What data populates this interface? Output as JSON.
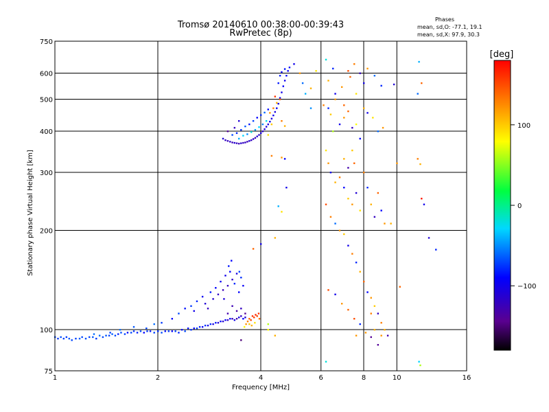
{
  "chart_data": {
    "type": "scatter",
    "title": "Tromsø 20140610 00:38:00-00:39:43",
    "subtitle": "RwPretec (8p)",
    "xlabel": "Frequency [MHz]",
    "ylabel": "Stationary phase Virtual Height [km]",
    "x_scale": "log",
    "y_scale": "log",
    "xlim": [
      1,
      16
    ],
    "ylim": [
      75,
      750
    ],
    "x_ticks": [
      1,
      2,
      4,
      6,
      8,
      10,
      16
    ],
    "y_ticks": [
      75,
      100,
      200,
      300,
      400,
      500,
      600,
      750
    ],
    "x_grid": [
      2,
      4,
      6,
      8,
      10
    ],
    "y_grid": [
      100,
      200,
      300,
      400,
      500,
      600
    ],
    "phase_box": {
      "heading": "Phases",
      "line1": "mean, sd,O: -77.1, 19.1",
      "line2": "mean, sd,X:  97.9, 30.3"
    },
    "colorbar": {
      "label": "[deg]",
      "range": [
        -180,
        180
      ],
      "ticks": [
        {
          "value": 100,
          "label": "100"
        },
        {
          "value": 0,
          "label": "0"
        },
        {
          "value": -100,
          "label": "−100"
        }
      ]
    },
    "points": [
      [
        1.0,
        95,
        -70
      ],
      [
        1.02,
        94,
        -75
      ],
      [
        1.04,
        95,
        -68
      ],
      [
        1.06,
        94,
        -72
      ],
      [
        1.08,
        95,
        -74
      ],
      [
        1.1,
        94,
        -66
      ],
      [
        1.12,
        93,
        -70
      ],
      [
        1.15,
        94,
        -72
      ],
      [
        1.18,
        94,
        -64
      ],
      [
        1.2,
        95,
        -70
      ],
      [
        1.23,
        94,
        -68
      ],
      [
        1.26,
        95,
        -72
      ],
      [
        1.29,
        95,
        -66
      ],
      [
        1.32,
        94,
        -74
      ],
      [
        1.35,
        96,
        -60
      ],
      [
        1.38,
        95,
        -70
      ],
      [
        1.41,
        96,
        -66
      ],
      [
        1.44,
        96,
        -72
      ],
      [
        1.47,
        97,
        -64
      ],
      [
        1.5,
        96,
        -70
      ],
      [
        1.53,
        97,
        -80
      ],
      [
        1.56,
        98,
        -68
      ],
      [
        1.6,
        97,
        -72
      ],
      [
        1.63,
        98,
        -88
      ],
      [
        1.67,
        98,
        -70
      ],
      [
        1.7,
        99,
        -76
      ],
      [
        1.74,
        98,
        -82
      ],
      [
        1.78,
        99,
        -70
      ],
      [
        1.82,
        98,
        -90
      ],
      [
        1.86,
        99,
        -74
      ],
      [
        1.9,
        99,
        -84
      ],
      [
        1.95,
        98,
        -72
      ],
      [
        2.0,
        99,
        -78
      ],
      [
        2.05,
        98,
        -70
      ],
      [
        2.1,
        99,
        -86
      ],
      [
        2.15,
        99,
        -74
      ],
      [
        2.2,
        99,
        -92
      ],
      [
        2.25,
        99,
        -72
      ],
      [
        2.3,
        98,
        -80
      ],
      [
        2.35,
        100,
        -88
      ],
      [
        2.4,
        99,
        -70
      ],
      [
        2.45,
        101,
        -84
      ],
      [
        2.5,
        100,
        -76
      ],
      [
        2.55,
        101,
        -90
      ],
      [
        2.6,
        101,
        -72
      ],
      [
        2.65,
        102,
        -82
      ],
      [
        2.7,
        102,
        -94
      ],
      [
        2.75,
        103,
        -76
      ],
      [
        2.8,
        103,
        -100
      ],
      [
        2.85,
        104,
        -80
      ],
      [
        2.9,
        104,
        -104
      ],
      [
        2.95,
        105,
        -84
      ],
      [
        3.0,
        105,
        -110
      ],
      [
        3.05,
        106,
        -88
      ],
      [
        3.1,
        106,
        -114
      ],
      [
        3.15,
        107,
        -92
      ],
      [
        3.2,
        107,
        -118
      ],
      [
        3.25,
        108,
        -96
      ],
      [
        3.3,
        108,
        -122
      ],
      [
        3.35,
        107,
        -100
      ],
      [
        3.4,
        108,
        -130
      ],
      [
        3.45,
        109,
        -104
      ],
      [
        3.5,
        110,
        -120
      ],
      [
        3.55,
        108,
        -90
      ],
      [
        3.6,
        109,
        -110
      ],
      [
        1.3,
        97,
        -60
      ],
      [
        1.45,
        98,
        -72
      ],
      [
        1.55,
        100,
        -60
      ],
      [
        1.7,
        102,
        -66
      ],
      [
        1.85,
        101,
        -70
      ],
      [
        1.95,
        104,
        -60
      ],
      [
        2.05,
        105,
        -74
      ],
      [
        2.2,
        108,
        -90
      ],
      [
        2.3,
        112,
        -70
      ],
      [
        2.4,
        116,
        -86
      ],
      [
        2.5,
        118,
        -74
      ],
      [
        2.55,
        114,
        -100
      ],
      [
        2.6,
        122,
        -80
      ],
      [
        2.7,
        126,
        -96
      ],
      [
        2.75,
        120,
        -110
      ],
      [
        2.85,
        130,
        -84
      ],
      [
        2.9,
        124,
        -112
      ],
      [
        2.95,
        134,
        -90
      ],
      [
        3.0,
        128,
        -118
      ],
      [
        3.05,
        140,
        -96
      ],
      [
        3.1,
        132,
        -124
      ],
      [
        3.15,
        146,
        -100
      ],
      [
        3.2,
        136,
        -120
      ],
      [
        3.25,
        150,
        -92
      ],
      [
        3.3,
        142,
        -116
      ],
      [
        3.35,
        138,
        -80
      ],
      [
        3.4,
        148,
        -104
      ],
      [
        3.45,
        130,
        -90
      ],
      [
        3.5,
        144,
        -76
      ],
      [
        3.55,
        136,
        -94
      ],
      [
        3.2,
        112,
        -130
      ],
      [
        3.3,
        118,
        -126
      ],
      [
        3.4,
        114,
        -134
      ],
      [
        3.5,
        116,
        -120
      ],
      [
        3.6,
        112,
        -140
      ],
      [
        3.22,
        156,
        -84
      ],
      [
        3.28,
        162,
        -90
      ],
      [
        3.46,
        150,
        -72
      ],
      [
        3.12,
        124,
        -108
      ],
      [
        2.8,
        116,
        -120
      ],
      [
        3.62,
        104,
        120
      ],
      [
        3.66,
        106,
        130
      ],
      [
        3.7,
        108,
        140
      ],
      [
        3.74,
        107,
        150
      ],
      [
        3.78,
        110,
        160
      ],
      [
        3.82,
        109,
        155
      ],
      [
        3.86,
        111,
        165
      ],
      [
        3.9,
        110,
        150
      ],
      [
        3.94,
        112,
        160
      ],
      [
        3.7,
        104,
        100
      ],
      [
        3.76,
        103,
        110
      ],
      [
        3.84,
        105,
        90
      ],
      [
        3.96,
        108,
        135
      ],
      [
        3.58,
        102,
        80
      ],
      [
        3.5,
        93,
        -150
      ],
      [
        4.2,
        104,
        60
      ],
      [
        4.4,
        96,
        110
      ],
      [
        3.1,
        380,
        -110
      ],
      [
        3.15,
        376,
        -118
      ],
      [
        3.2,
        374,
        -122
      ],
      [
        3.25,
        372,
        -116
      ],
      [
        3.3,
        370,
        -124
      ],
      [
        3.35,
        369,
        -112
      ],
      [
        3.4,
        368,
        -120
      ],
      [
        3.45,
        367,
        -126
      ],
      [
        3.5,
        368,
        -114
      ],
      [
        3.55,
        369,
        -122
      ],
      [
        3.6,
        370,
        -118
      ],
      [
        3.65,
        372,
        -126
      ],
      [
        3.7,
        374,
        -112
      ],
      [
        3.75,
        376,
        -120
      ],
      [
        3.8,
        379,
        -116
      ],
      [
        3.85,
        382,
        -124
      ],
      [
        3.9,
        386,
        -110
      ],
      [
        3.95,
        390,
        -118
      ],
      [
        4.0,
        395,
        -106
      ],
      [
        4.05,
        400,
        -114
      ],
      [
        4.1,
        406,
        -110
      ],
      [
        4.15,
        413,
        -102
      ],
      [
        4.2,
        420,
        -108
      ],
      [
        4.25,
        428,
        -100
      ],
      [
        4.3,
        437,
        -106
      ],
      [
        4.35,
        447,
        -98
      ],
      [
        4.4,
        458,
        -104
      ],
      [
        4.45,
        470,
        -96
      ],
      [
        4.5,
        485,
        -102
      ],
      [
        4.55,
        505,
        -94
      ],
      [
        4.6,
        525,
        -100
      ],
      [
        4.65,
        548,
        -92
      ],
      [
        4.7,
        570,
        -98
      ],
      [
        4.75,
        590,
        -90
      ],
      [
        4.8,
        610,
        -96
      ],
      [
        4.85,
        625,
        -88
      ],
      [
        4.55,
        590,
        -82
      ],
      [
        4.6,
        605,
        -90
      ],
      [
        4.7,
        618,
        -86
      ],
      [
        4.5,
        560,
        -84
      ],
      [
        3.3,
        390,
        -70
      ],
      [
        3.4,
        395,
        -80
      ],
      [
        3.5,
        404,
        -76
      ],
      [
        3.6,
        414,
        -66
      ],
      [
        3.7,
        420,
        -84
      ],
      [
        3.8,
        430,
        -72
      ],
      [
        3.9,
        440,
        -90
      ],
      [
        4.0,
        448,
        -78
      ],
      [
        4.1,
        456,
        -62
      ],
      [
        4.2,
        466,
        -88
      ],
      [
        3.45,
        380,
        -40
      ],
      [
        3.55,
        388,
        -30
      ],
      [
        3.65,
        392,
        -50
      ],
      [
        3.75,
        398,
        -20
      ],
      [
        3.85,
        404,
        -45
      ],
      [
        3.95,
        412,
        -30
      ],
      [
        4.05,
        420,
        -55
      ],
      [
        4.15,
        430,
        -25
      ],
      [
        3.35,
        410,
        -120
      ],
      [
        3.45,
        430,
        -110
      ],
      [
        4.25,
        455,
        120
      ],
      [
        4.35,
        470,
        130
      ],
      [
        4.45,
        488,
        110
      ],
      [
        4.55,
        500,
        140
      ],
      [
        4.3,
        420,
        100
      ],
      [
        4.4,
        510,
        160
      ],
      [
        4.6,
        430,
        130
      ],
      [
        4.7,
        415,
        110
      ],
      [
        4.2,
        390,
        90
      ],
      [
        3.2,
        400,
        -140
      ],
      [
        4.3,
        337,
        130
      ],
      [
        4.6,
        333,
        120
      ],
      [
        4.7,
        330,
        -90
      ],
      [
        4.5,
        237,
        -40
      ],
      [
        4.75,
        270,
        -100
      ],
      [
        4.6,
        228,
        90
      ],
      [
        4.4,
        190,
        110
      ],
      [
        4.0,
        182,
        -100
      ],
      [
        3.8,
        176,
        140
      ],
      [
        4.2,
        100,
        80
      ],
      [
        5.0,
        640,
        -100
      ],
      [
        5.2,
        600,
        120
      ],
      [
        5.3,
        560,
        -60
      ],
      [
        5.4,
        520,
        -40
      ],
      [
        5.6,
        540,
        110
      ],
      [
        5.8,
        610,
        90
      ],
      [
        6.2,
        660,
        -20
      ],
      [
        6.5,
        620,
        -80
      ],
      [
        7.2,
        610,
        150
      ],
      [
        7.5,
        640,
        130
      ],
      [
        6.3,
        570,
        110
      ],
      [
        6.6,
        520,
        -100
      ],
      [
        6.9,
        545,
        120
      ],
      [
        7.3,
        585,
        140
      ],
      [
        7.6,
        520,
        90
      ],
      [
        7.8,
        600,
        -120
      ],
      [
        8.0,
        560,
        -100
      ],
      [
        8.2,
        620,
        120
      ],
      [
        8.6,
        590,
        -60
      ],
      [
        9.0,
        550,
        -80
      ],
      [
        9.8,
        555,
        -110
      ],
      [
        11.6,
        650,
        -40
      ],
      [
        11.8,
        560,
        140
      ],
      [
        11.5,
        520,
        -60
      ],
      [
        6.1,
        480,
        130
      ],
      [
        6.3,
        470,
        -80
      ],
      [
        6.4,
        450,
        100
      ],
      [
        6.8,
        420,
        -100
      ],
      [
        7.0,
        440,
        120
      ],
      [
        7.2,
        460,
        140
      ],
      [
        7.4,
        410,
        -120
      ],
      [
        7.6,
        420,
        80
      ],
      [
        7.8,
        380,
        -90
      ],
      [
        8.0,
        470,
        110
      ],
      [
        8.2,
        455,
        -100
      ],
      [
        8.5,
        440,
        90
      ],
      [
        8.8,
        400,
        -60
      ],
      [
        9.1,
        410,
        120
      ],
      [
        6.5,
        400,
        60
      ],
      [
        7.0,
        330,
        110
      ],
      [
        7.2,
        310,
        -130
      ],
      [
        7.4,
        350,
        100
      ],
      [
        7.5,
        320,
        140
      ],
      [
        6.2,
        350,
        90
      ],
      [
        6.3,
        320,
        120
      ],
      [
        6.4,
        300,
        -100
      ],
      [
        6.6,
        280,
        110
      ],
      [
        6.8,
        290,
        130
      ],
      [
        7.0,
        270,
        -90
      ],
      [
        7.2,
        250,
        100
      ],
      [
        7.4,
        240,
        120
      ],
      [
        7.6,
        260,
        -110
      ],
      [
        7.8,
        230,
        90
      ],
      [
        8.0,
        300,
        130
      ],
      [
        8.2,
        270,
        -80
      ],
      [
        8.4,
        240,
        110
      ],
      [
        8.6,
        220,
        -120
      ],
      [
        8.8,
        260,
        140
      ],
      [
        9.0,
        230,
        -90
      ],
      [
        9.2,
        210,
        120
      ],
      [
        6.2,
        240,
        150
      ],
      [
        6.4,
        220,
        130
      ],
      [
        6.6,
        210,
        -60
      ],
      [
        6.8,
        200,
        120
      ],
      [
        7.0,
        195,
        100
      ],
      [
        7.2,
        180,
        -100
      ],
      [
        7.4,
        170,
        130
      ],
      [
        7.6,
        160,
        -80
      ],
      [
        7.8,
        150,
        110
      ],
      [
        8.0,
        140,
        140
      ],
      [
        8.2,
        130,
        -90
      ],
      [
        8.4,
        125,
        120
      ],
      [
        8.6,
        118,
        100
      ],
      [
        8.8,
        112,
        -120
      ],
      [
        9.0,
        105,
        130
      ],
      [
        9.2,
        100,
        110
      ],
      [
        9.4,
        96,
        -130
      ],
      [
        6.3,
        132,
        150
      ],
      [
        6.6,
        128,
        -100
      ],
      [
        6.9,
        120,
        120
      ],
      [
        7.2,
        115,
        140
      ],
      [
        7.5,
        108,
        150
      ],
      [
        7.8,
        104,
        -80
      ],
      [
        8.1,
        98,
        120
      ],
      [
        8.4,
        95,
        -140
      ],
      [
        6.2,
        80,
        -20
      ],
      [
        11.6,
        80,
        -30
      ],
      [
        11.7,
        78,
        60
      ],
      [
        11.8,
        250,
        170
      ],
      [
        12.0,
        240,
        -100
      ],
      [
        12.4,
        190,
        -110
      ],
      [
        13.0,
        175,
        -80
      ],
      [
        10.2,
        135,
        140
      ],
      [
        9.6,
        210,
        110
      ],
      [
        10.0,
        320,
        120
      ],
      [
        11.5,
        330,
        130
      ],
      [
        11.7,
        318,
        110
      ],
      [
        8.4,
        112,
        130
      ],
      [
        8.6,
        100,
        110
      ],
      [
        9.0,
        96,
        120
      ],
      [
        8.8,
        90,
        -140
      ],
      [
        7.6,
        96,
        120
      ],
      [
        6.6,
        500,
        120
      ],
      [
        7.0,
        480,
        140
      ],
      [
        5.6,
        470,
        -50
      ]
    ]
  }
}
